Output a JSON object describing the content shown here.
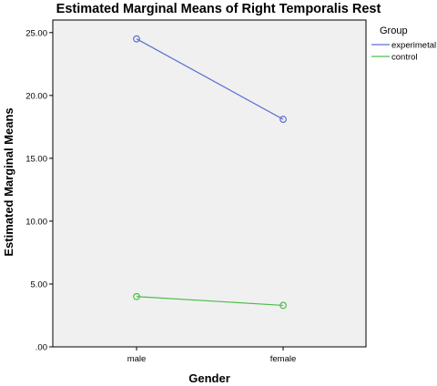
{
  "chart_data": {
    "type": "line",
    "title": "Estimated Marginal Means of Right Temporalis Rest",
    "xlabel": "Gender",
    "ylabel": "Estimated Marginal Means",
    "categories": [
      "male",
      "female"
    ],
    "y_ticks": [
      ".00",
      "5.00",
      "10.00",
      "15.00",
      "20.00",
      "25.00"
    ],
    "ylim": [
      0,
      26
    ],
    "grid": false,
    "legend": {
      "title": "Group",
      "placement": "right"
    },
    "series": [
      {
        "name": "experimetal",
        "values": [
          24.5,
          18.1
        ],
        "color": "#5b6fd1"
      },
      {
        "name": "control",
        "values": [
          4.0,
          3.3
        ],
        "color": "#4dbd4d"
      }
    ],
    "plot_background": "#f0f0f0"
  }
}
